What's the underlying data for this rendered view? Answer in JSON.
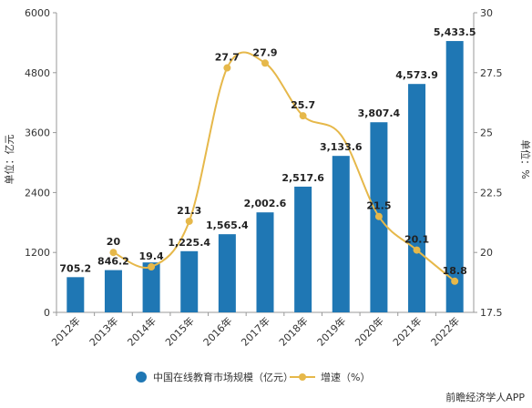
{
  "chart_data": {
    "type": "bar",
    "categories": [
      "2012年",
      "2013年",
      "2014年",
      "2015年",
      "2016年",
      "2017年",
      "2018年",
      "2019年",
      "2020年",
      "2021年",
      "2022年"
    ],
    "series": [
      {
        "name": "中国在线教育市场规模（亿元）",
        "type": "bar",
        "axis": "left",
        "color": "#1f77b4",
        "values": [
          705.2,
          846.2,
          1000,
          1225.4,
          1565.4,
          2002.6,
          2517.6,
          3133.6,
          3807.4,
          4573.9,
          5433.5
        ],
        "labels": [
          "705.2",
          "846.2",
          "",
          "1,225.4",
          "1,565.4",
          "2,002.6",
          "2,517.6",
          "3,133.6",
          "3,807.4",
          "4,573.9",
          "5,433.5"
        ]
      },
      {
        "name": "增速（%）",
        "type": "line",
        "axis": "right",
        "color": "#e6b84a",
        "values": [
          null,
          20,
          19.4,
          21.3,
          27.7,
          27.9,
          25.7,
          24.9,
          21.5,
          20.1,
          18.8
        ],
        "labels": [
          "",
          "20",
          "19.4",
          "21.3",
          "27.7",
          "27.9",
          "25.7",
          "",
          "21.5",
          "20.1",
          "18.8"
        ]
      }
    ],
    "ylabel_left": "单位：亿元",
    "ylabel_right": "单位：%",
    "ylim_left": [
      0,
      6000
    ],
    "yticks_left": [
      "0",
      "1200",
      "2400",
      "3600",
      "4800",
      "6000"
    ],
    "ylim_right": [
      17.5,
      30
    ],
    "yticks_right": [
      "17.5",
      "20",
      "22.5",
      "25",
      "27.5",
      "30"
    ],
    "grid": false,
    "legend_position": "bottom"
  },
  "watermark": "前瞻经济学人APP"
}
